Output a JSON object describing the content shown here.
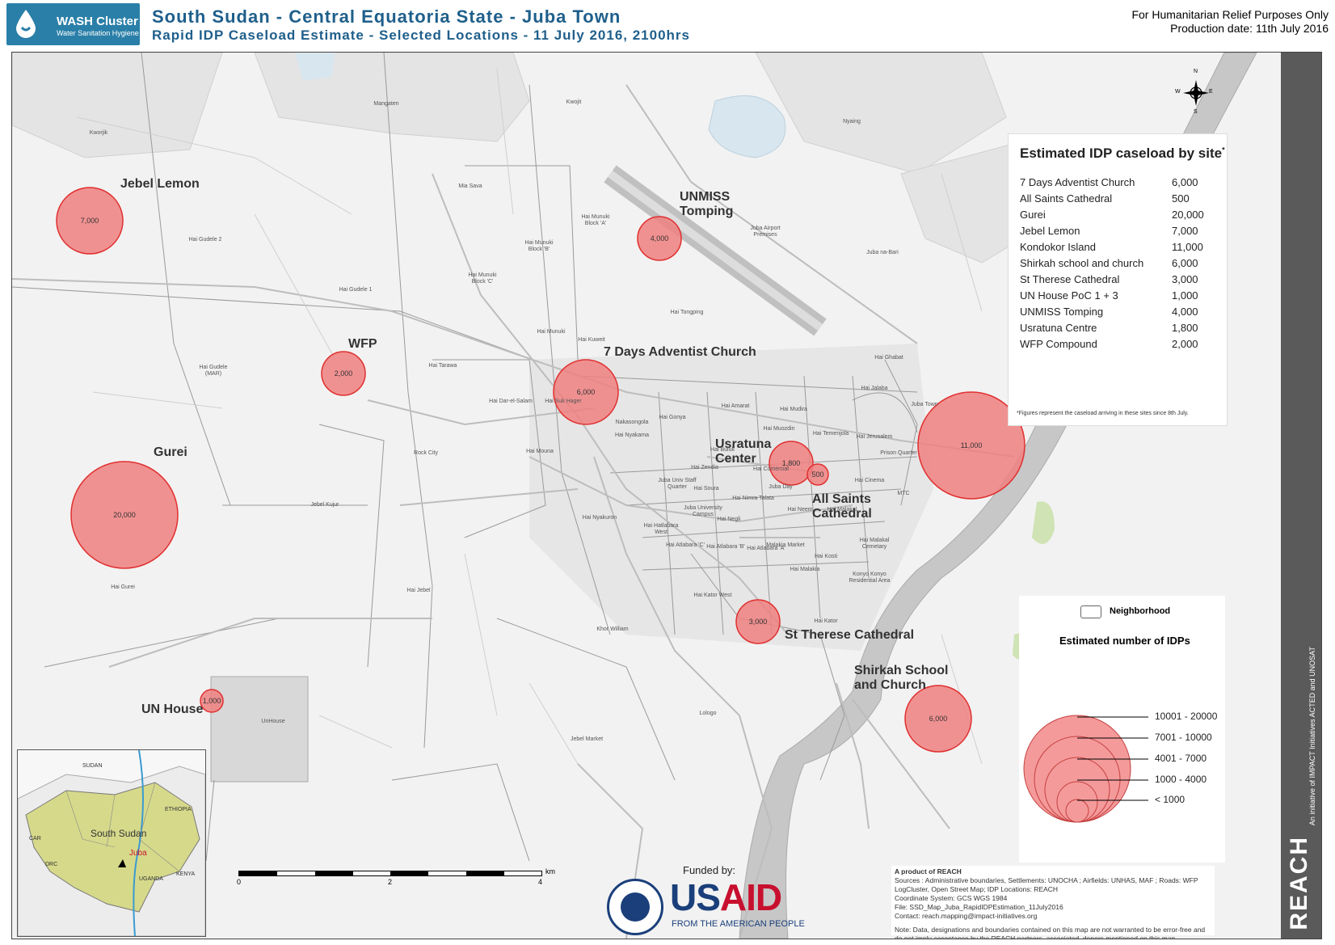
{
  "header": {
    "logo_title": "WASH Cluster",
    "logo_subtitle": "Water Sanitation Hygiene",
    "title_main": "South Sudan - Central Equatoria State - Juba Town",
    "title_sub": "Rapid IDP Caseload Estimate - Selected Locations - 11 July 2016, 2100hrs",
    "note_purpose": "For Humanitarian Relief Purposes Only",
    "note_date": "Production date: 11th July 2016"
  },
  "sites": [
    {
      "label": "Jebel Lemon",
      "value": "7,000"
    },
    {
      "label": "UNMISS Tomping",
      "value": "4,000"
    },
    {
      "label": "WFP",
      "value": "2,000"
    },
    {
      "label": "7 Days Adventist Church",
      "value": "6,000"
    },
    {
      "label": "Gurei",
      "value": "20,000"
    },
    {
      "label": "Usratuna Center",
      "value": "1,800"
    },
    {
      "label": "All Saints Cathedral",
      "value": "500"
    },
    {
      "label": "Kondokor Island",
      "value": "11,000"
    },
    {
      "label": "St Therese Cathedral",
      "value": "3,000"
    },
    {
      "label": "Shirkah School and Church",
      "value": "6,000"
    },
    {
      "label": "UN House",
      "value": "1,000"
    }
  ],
  "places": [
    "Mangaten",
    "Kworjik",
    "Kwojit",
    "Nyaing",
    "Mia Sava",
    "Hai Munuki Block 'A'",
    "Hai Munuki Block 'B'",
    "Hai Munuki Block 'C'",
    "Juba Airport Premises",
    "Juba na-Bari",
    "Hai Gudele 2",
    "Hai Gudele 1",
    "Hai Gudele (MAR)",
    "Hai Tarawa",
    "Hai Munuki",
    "Hai Kuweit",
    "Hai Tongping",
    "Hai Ghabat",
    "Hai Dar-el-Salam",
    "Hai Suk Hager",
    "Nakasongola",
    "Hai Gonya",
    "Hai Amarat",
    "Hai Mudira",
    "Hai Jalaba",
    "Juba Town",
    "Rock City",
    "Hai Mouna",
    "Hai Nyakama",
    "Hai Buluk",
    "Hai Muozdin",
    "Hai Temenjola",
    "Hai Jerusalem",
    "Prison Quarter",
    "Jebel Kujur",
    "Juba Univ Staff Quarter",
    "Hai Zendia",
    "Hai Soura",
    "Hai Comercial",
    "Juba Day",
    "Hai Cinema",
    "Hai Nimra Talata",
    "Hai Neem",
    "Hai Malakal",
    "MTC",
    "Hai Nyakuron",
    "Juba University Campus",
    "Hai Negli",
    "Hai Hatlabara West",
    "Hai Atlabara 'C'",
    "Hai Atlabara 'B'",
    "Hai Atlabara 'A'",
    "Malakia Market",
    "Hai Kosti",
    "Hai Malakia",
    "Hai Malakal Cemetary",
    "Konyo Konyo Residential Area",
    "Hai Gurei",
    "Hai Jebel",
    "Hai Kator West",
    "Khor William",
    "Hai Kator",
    "UnHouse",
    "Lologo",
    "Jebel Market"
  ],
  "legend_table": {
    "title": "Estimated IDP caseload by site",
    "title_mark": "*",
    "rows": [
      {
        "name": "7 Days Adventist Church",
        "value": "6,000"
      },
      {
        "name": "All Saints Cathedral",
        "value": "500"
      },
      {
        "name": "Gurei",
        "value": "20,000"
      },
      {
        "name": "Jebel Lemon",
        "value": "7,000"
      },
      {
        "name": "Kondokor Island",
        "value": "11,000"
      },
      {
        "name": "Shirkah school and church",
        "value": "6,000"
      },
      {
        "name": "St Therese Cathedral",
        "value": "3,000"
      },
      {
        "name": "UN House PoC 1 + 3",
        "value": "1,000"
      },
      {
        "name": "UNMISS Tomping",
        "value": "4,000"
      },
      {
        "name": "Usratuna Centre",
        "value": "1,800"
      },
      {
        "name": "WFP Compound",
        "value": "2,000"
      }
    ],
    "footnote": "*Figures represent the caseload arriving in these sites since 8th July."
  },
  "legend_size": {
    "neighborhood_label": "Neighborhood",
    "title": "Estimated number of IDPs",
    "classes": [
      "10001 - 20000",
      "7001 - 10000",
      "4001 - 7000",
      "1000 - 4000",
      "< 1000"
    ]
  },
  "credits": {
    "title": "A product of REACH",
    "lines": [
      "Sources : Administrative boundaries, Settlements: UNOCHA ; Airfields: UNHAS, MAF ; Roads: WFP LogCluster, Open Street Map; IDP Locations: REACH",
      "Coordinate System: GCS WGS 1984",
      "File: SSD_Map_Juba_RapidIDPEstimation_11July2016",
      "Contact: reach.mapping@impact-initiatives.org",
      "Note: Data, designations and boundaries contained on this map are not warranted to be error-free and do not imply acceptance by the REACH partners, associated, donors mentioned on this map."
    ]
  },
  "funded_by": "Funded by:",
  "usaid": {
    "word_us": "US",
    "word_aid": "AID",
    "tagline": "FROM THE AMERICAN PEOPLE"
  },
  "reach": {
    "name": "REACH",
    "initiative": "An initiative of IMPACT Initiatives ACTED and UNOSAT"
  },
  "scale": {
    "ticks": [
      "0",
      "2",
      "4"
    ],
    "unit": "km"
  },
  "north": {
    "n": "N",
    "s": "S",
    "e": "E",
    "w": "W"
  },
  "inset": {
    "labels": [
      "SUDAN",
      "ETHIOPIA",
      "South Sudan",
      "CAR",
      "DRC",
      "UGANDA",
      "KENYA",
      "Juba"
    ]
  },
  "colors": {
    "circle_fill": "#f08080",
    "circle_stroke": "#e03030",
    "title": "#1f5f8b",
    "reach_band": "#5a5a5a"
  }
}
